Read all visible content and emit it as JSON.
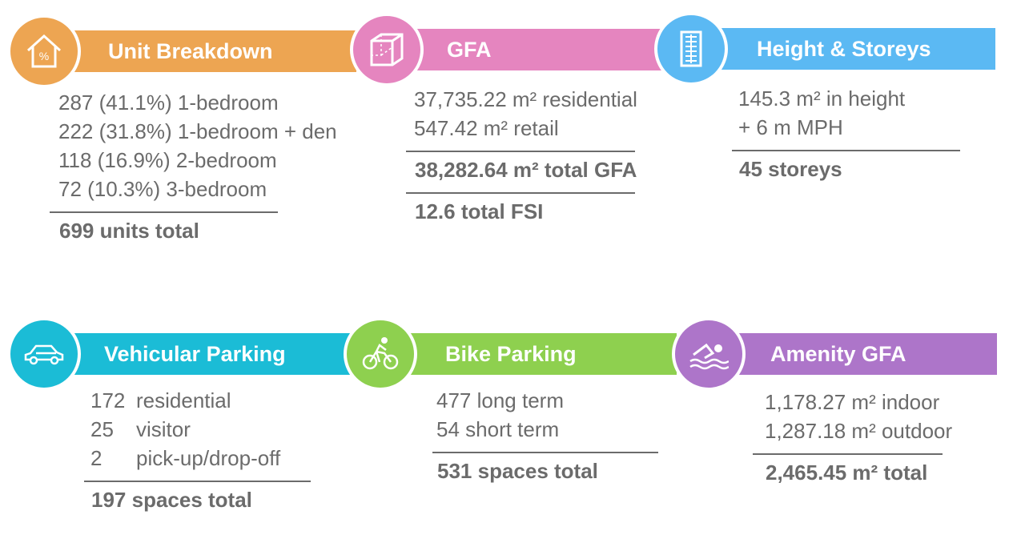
{
  "cards": [
    {
      "title": "Unit Breakdown",
      "lines": [
        "287 (41.1%) 1-bedroom",
        "222 (31.8%) 1-bedroom + den",
        "118 (16.9%) 2-bedroom",
        "72 (10.3%) 3-bedroom"
      ],
      "totals": [
        "699 units total"
      ]
    },
    {
      "title": "GFA",
      "lines": [
        "37,735.22 m² residential",
        "547.42 m² retail"
      ],
      "totals": [
        "38,282.64 m² total GFA",
        "12.6 total FSI"
      ]
    },
    {
      "title": "Height & Storeys",
      "lines": [
        "145.3 m² in height",
        "+ 6 m MPH"
      ],
      "totals": [
        "45 storeys"
      ]
    },
    {
      "title": "Vehicular Parking",
      "lines": [
        [
          "172",
          "residential"
        ],
        [
          "25",
          "visitor"
        ],
        [
          "2",
          "pick-up/drop-off"
        ]
      ],
      "totals": [
        "197 spaces total"
      ]
    },
    {
      "title": "Bike Parking",
      "lines": [
        "477 long term",
        "54 short term"
      ],
      "totals": [
        "531 spaces total"
      ]
    },
    {
      "title": "Amenity GFA",
      "lines": [
        "1,178.27 m² indoor",
        "1,287.18 m² outdoor"
      ],
      "totals": [
        "2,465.45 m² total"
      ]
    }
  ]
}
